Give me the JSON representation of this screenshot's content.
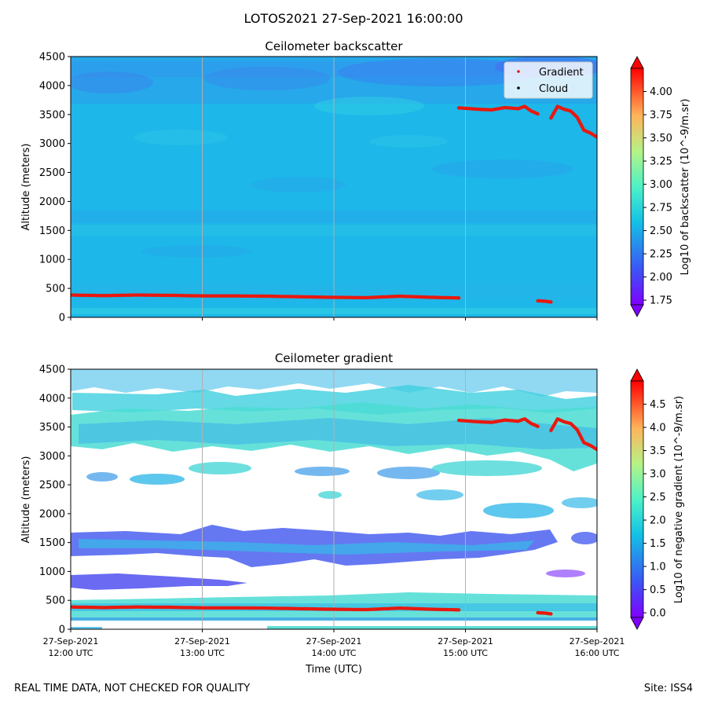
{
  "figure": {
    "title": "LOTOS2021 27-Sep-2021 16:00:00",
    "footer_left": "REAL TIME DATA, NOT CHECKED FOR QUALITY",
    "footer_right": "Site: ISS4",
    "xlabel": "Time (UTC)",
    "x_ticks": [
      [
        "27-Sep-2021",
        "12:00 UTC"
      ],
      [
        "27-Sep-2021",
        "13:00 UTC"
      ],
      [
        "27-Sep-2021",
        "14:00 UTC"
      ],
      [
        "27-Sep-2021",
        "15:00 UTC"
      ],
      [
        "27-Sep-2021",
        "16:00 UTC"
      ]
    ]
  },
  "colors": {
    "background_field": "#1fb4e8",
    "marker": "#e8190f",
    "grid": "#b0b0b0"
  },
  "chart_data": [
    {
      "type": "heatmap",
      "title": "Ceilometer backscatter",
      "xlabel": "",
      "ylabel": "Altitude (meters)",
      "xlim_hours_utc": [
        12,
        16
      ],
      "ylim": [
        0,
        4500
      ],
      "y_ticks": [
        0,
        500,
        1000,
        1500,
        2000,
        2500,
        3000,
        3500,
        4000,
        4500
      ],
      "colorbar": {
        "label": "Log10 of backscatter (10^-9/m.sr)",
        "range": [
          1.7,
          4.25
        ],
        "ticks": [
          "1.75",
          "2.00",
          "2.25",
          "2.50",
          "2.75",
          "3.00",
          "3.25",
          "3.50",
          "3.75",
          "4.00"
        ]
      },
      "legend": {
        "position": "top-right",
        "entries": [
          "Gradient",
          "Cloud"
        ]
      },
      "series": [
        {
          "name": "Gradient",
          "x_hours": [
            12.0,
            12.25,
            12.5,
            12.75,
            13.0,
            13.25,
            13.5,
            13.75,
            14.0,
            14.25,
            14.5,
            14.75,
            14.95
          ],
          "y": [
            385,
            375,
            385,
            380,
            370,
            370,
            365,
            355,
            345,
            340,
            365,
            345,
            335
          ]
        },
        {
          "name": "Gradient",
          "x_hours": [
            15.55,
            15.6,
            15.65
          ],
          "y": [
            285,
            280,
            265
          ]
        },
        {
          "name": "Gradient",
          "x_hours": [
            14.95,
            15.1,
            15.2,
            15.3,
            15.4,
            15.45,
            15.5,
            15.55
          ],
          "y": [
            3615,
            3590,
            3580,
            3620,
            3600,
            3640,
            3560,
            3510
          ]
        },
        {
          "name": "Gradient",
          "x_hours": [
            15.65,
            15.7,
            15.75,
            15.8,
            15.85,
            15.9,
            15.95,
            16.0
          ],
          "y": [
            3440,
            3640,
            3590,
            3560,
            3450,
            3230,
            3180,
            3110
          ]
        }
      ]
    },
    {
      "type": "heatmap",
      "title": "Ceilometer gradient",
      "xlabel": "Time (UTC)",
      "ylabel": "Altitude (meters)",
      "xlim_hours_utc": [
        12,
        16
      ],
      "ylim": [
        0,
        4500
      ],
      "y_ticks": [
        0,
        500,
        1000,
        1500,
        2000,
        2500,
        3000,
        3500,
        4000,
        4500
      ],
      "colorbar": {
        "label": "Log10 of negative gradient (10^-9/m.sr)",
        "range": [
          -0.1,
          5.0
        ],
        "ticks": [
          "0.0",
          "0.5",
          "1.0",
          "1.5",
          "2.0",
          "2.5",
          "3.0",
          "3.5",
          "4.0",
          "4.5"
        ]
      },
      "series": [
        {
          "name": "Gradient",
          "x_hours": [
            12.0,
            12.25,
            12.5,
            12.75,
            13.0,
            13.25,
            13.5,
            13.75,
            14.0,
            14.25,
            14.5,
            14.75,
            14.95
          ],
          "y": [
            385,
            375,
            385,
            380,
            370,
            370,
            365,
            355,
            345,
            340,
            365,
            345,
            335
          ]
        },
        {
          "name": "Gradient",
          "x_hours": [
            15.55,
            15.6,
            15.65
          ],
          "y": [
            285,
            280,
            265
          ]
        },
        {
          "name": "Gradient",
          "x_hours": [
            14.95,
            15.1,
            15.2,
            15.3,
            15.4,
            15.45,
            15.5,
            15.55
          ],
          "y": [
            3615,
            3590,
            3580,
            3620,
            3600,
            3640,
            3560,
            3510
          ]
        },
        {
          "name": "Gradient",
          "x_hours": [
            15.65,
            15.7,
            15.75,
            15.8,
            15.85,
            15.9,
            15.95,
            16.0
          ],
          "y": [
            3440,
            3640,
            3590,
            3560,
            3450,
            3230,
            3180,
            3110
          ]
        }
      ]
    }
  ]
}
